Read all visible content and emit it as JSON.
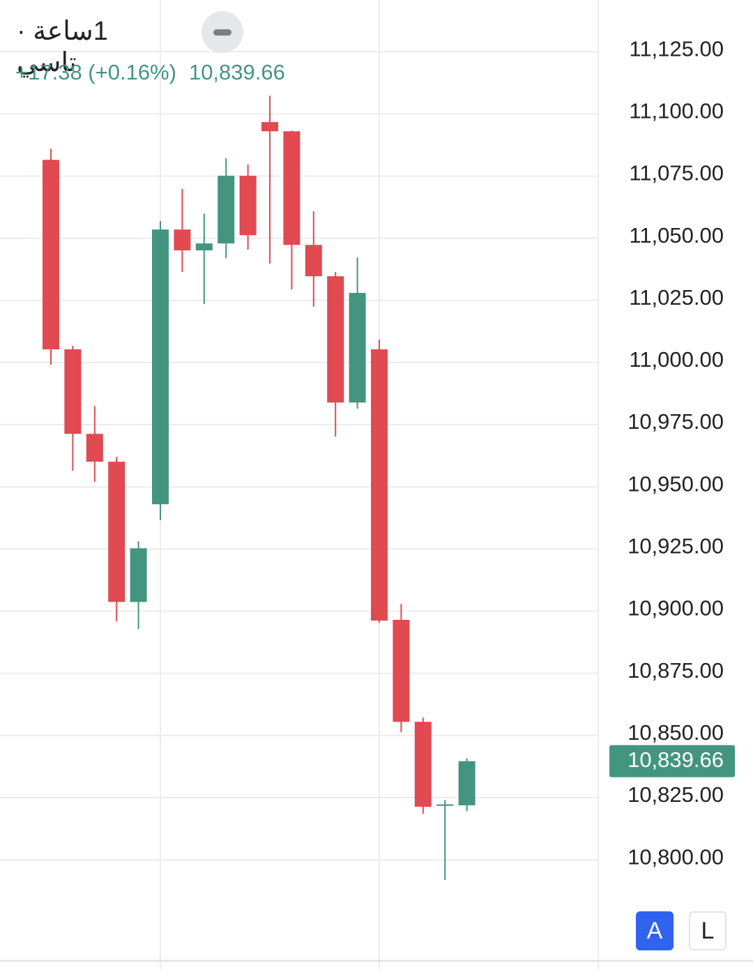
{
  "header": {
    "title": "1ساعة · تاسي",
    "change": "+17.38 (+0.16%)",
    "buttons": [
      "A",
      "L"
    ]
  },
  "chart_data": {
    "type": "candlestick",
    "up_color": "#43957f",
    "down_color": "#e04a50",
    "open": [
      11081.5,
      11005.3,
      10971.3,
      10960.1,
      10903.7,
      10943.0,
      11053.5,
      11045.1,
      11047.9,
      11075.1,
      11096.7,
      11093.0,
      11047.3,
      11034.7,
      10983.9,
      11005.3,
      10896.5,
      10855.5,
      10821.7,
      10821.9
    ],
    "high": [
      11086.0,
      11006.7,
      10982.5,
      10962.1,
      10928.1,
      11056.9,
      11069.8,
      11059.9,
      11082.1,
      11079.6,
      11107.3,
      11093.3,
      11060.8,
      11036.4,
      11042.3,
      11009.2,
      10902.9,
      10857.2,
      10824.1,
      10840.9
    ],
    "low": [
      10999.1,
      10956.5,
      10952.0,
      10895.9,
      10892.8,
      10936.6,
      11036.4,
      11023.5,
      11042.0,
      11045.4,
      11039.8,
      11029.4,
      11022.4,
      10970.2,
      10981.4,
      10895.3,
      10851.3,
      10818.5,
      10791.9,
      10819.6
    ],
    "close": [
      11005.3,
      10971.3,
      10960.1,
      10903.7,
      10925.3,
      11053.5,
      11045.1,
      11047.9,
      11075.1,
      11051.2,
      11093.0,
      11047.3,
      11034.7,
      10983.9,
      11028.0,
      10896.2,
      10855.5,
      10821.3,
      10822.3,
      10839.66
    ],
    "last_price": {
      "value": 10839.66,
      "label": "10,839.66"
    },
    "ylim": [
      10758.8,
      11145.8
    ],
    "yticks": [
      {
        "value": 11125,
        "label": "11,125.00"
      },
      {
        "value": 11100,
        "label": "11,100.00"
      },
      {
        "value": 11075,
        "label": "11,075.00"
      },
      {
        "value": 11050,
        "label": "11,050.00"
      },
      {
        "value": 11025,
        "label": "11,025.00"
      },
      {
        "value": 11000,
        "label": "11,000.00"
      },
      {
        "value": 10975,
        "label": "10,975.00"
      },
      {
        "value": 10950,
        "label": "10,950.00"
      },
      {
        "value": 10925,
        "label": "10,925.00"
      },
      {
        "value": 10900,
        "label": "10,900.00"
      },
      {
        "value": 10875,
        "label": "10,875.00"
      },
      {
        "value": 10850,
        "label": "10,850.00"
      },
      {
        "value": 10825,
        "label": "10,825.00"
      },
      {
        "value": 10800,
        "label": "10,800.00"
      }
    ],
    "grid": true
  }
}
